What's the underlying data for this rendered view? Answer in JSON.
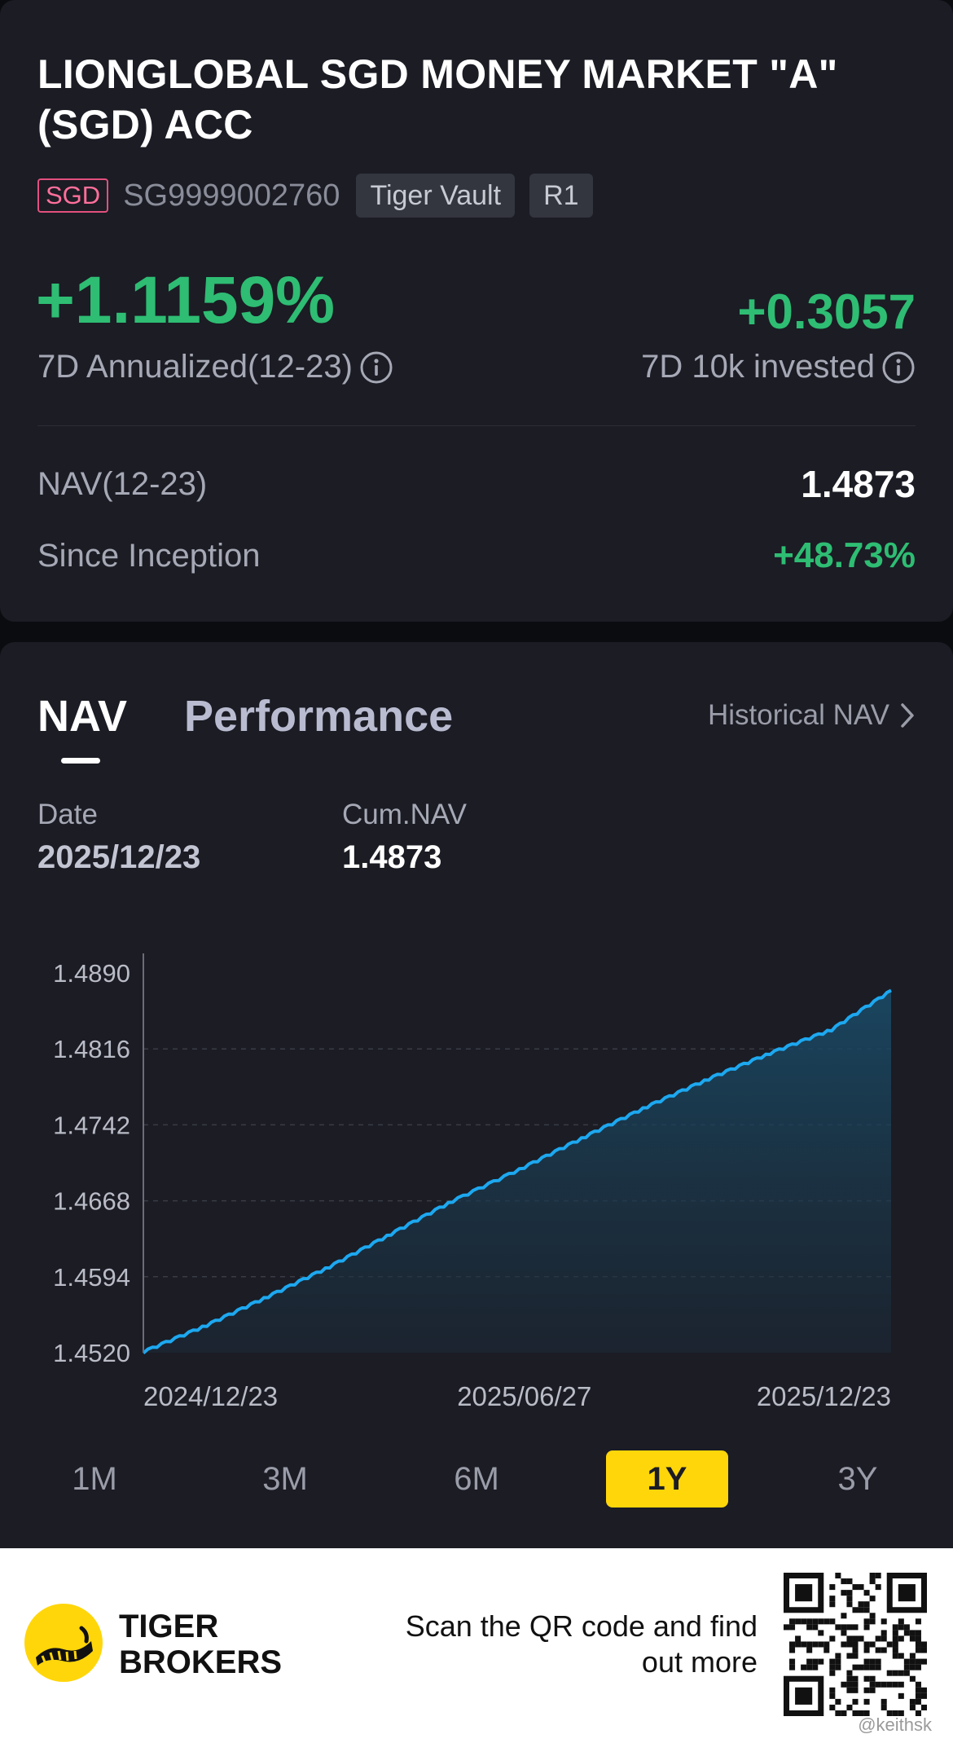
{
  "fund": {
    "title": "LIONGLOBAL SGD MONEY MARKET \"A\" (SGD) ACC",
    "currency_tag": "SGD",
    "isin": "SG9999002760",
    "chips": [
      "Tiger Vault",
      "R1"
    ]
  },
  "summary": {
    "annualized_value": "+1.1159%",
    "annualized_label": "7D Annualized(12-23)",
    "invested_value": "+0.3057",
    "invested_label": "7D 10k invested",
    "nav_label": "NAV(12-23)",
    "nav_value": "1.4873",
    "inception_label": "Since Inception",
    "inception_value": "+48.73%"
  },
  "tabs": {
    "nav": "NAV",
    "performance": "Performance",
    "historical": "Historical NAV"
  },
  "crosshair_info": {
    "date_label": "Date",
    "date_value": "2025/12/23",
    "cum_label": "Cum.NAV",
    "cum_value": "1.4873"
  },
  "ranges": [
    "1M",
    "3M",
    "6M",
    "1Y",
    "3Y"
  ],
  "active_range": "1Y",
  "footer": {
    "brand_line1": "TIGER",
    "brand_line2": "BROKERS",
    "scan_text": "Scan the QR code and find out more",
    "watermark": "@keithsk"
  },
  "colors": {
    "accent_green": "#2ebd73",
    "line_blue": "#1da8f0",
    "active_range_bg": "#ffd60a",
    "currency_tag": "#e2507e"
  },
  "chart_data": {
    "type": "area",
    "x_tick_labels": [
      "2024/12/23",
      "2025/06/27",
      "2025/12/23"
    ],
    "y_tick_labels": [
      "1.4890",
      "1.4816",
      "1.4742",
      "1.4668",
      "1.4594",
      "1.4520"
    ],
    "y_ticks": [
      1.489,
      1.4816,
      1.4742,
      1.4668,
      1.4594,
      1.452
    ],
    "ylim": [
      1.452,
      1.489
    ],
    "x_range": [
      "2024/12/23",
      "2025/12/23"
    ],
    "grid": "dashed horizontal",
    "series": [
      {
        "points": [
          [
            "2024/12/23",
            1.4521
          ],
          [
            "2025/01/23",
            1.4547
          ],
          [
            "2025/02/22",
            1.4575
          ],
          [
            "2025/03/24",
            1.4604
          ],
          [
            "2025/04/23",
            1.4636
          ],
          [
            "2025/05/23",
            1.4668
          ],
          [
            "2025/06/27",
            1.4701
          ],
          [
            "2025/07/27",
            1.4731
          ],
          [
            "2025/08/26",
            1.476
          ],
          [
            "2025/09/25",
            1.4787
          ],
          [
            "2025/10/25",
            1.4812
          ],
          [
            "2025/11/24",
            1.4835
          ],
          [
            "2025/12/23",
            1.4873
          ]
        ]
      }
    ]
  }
}
